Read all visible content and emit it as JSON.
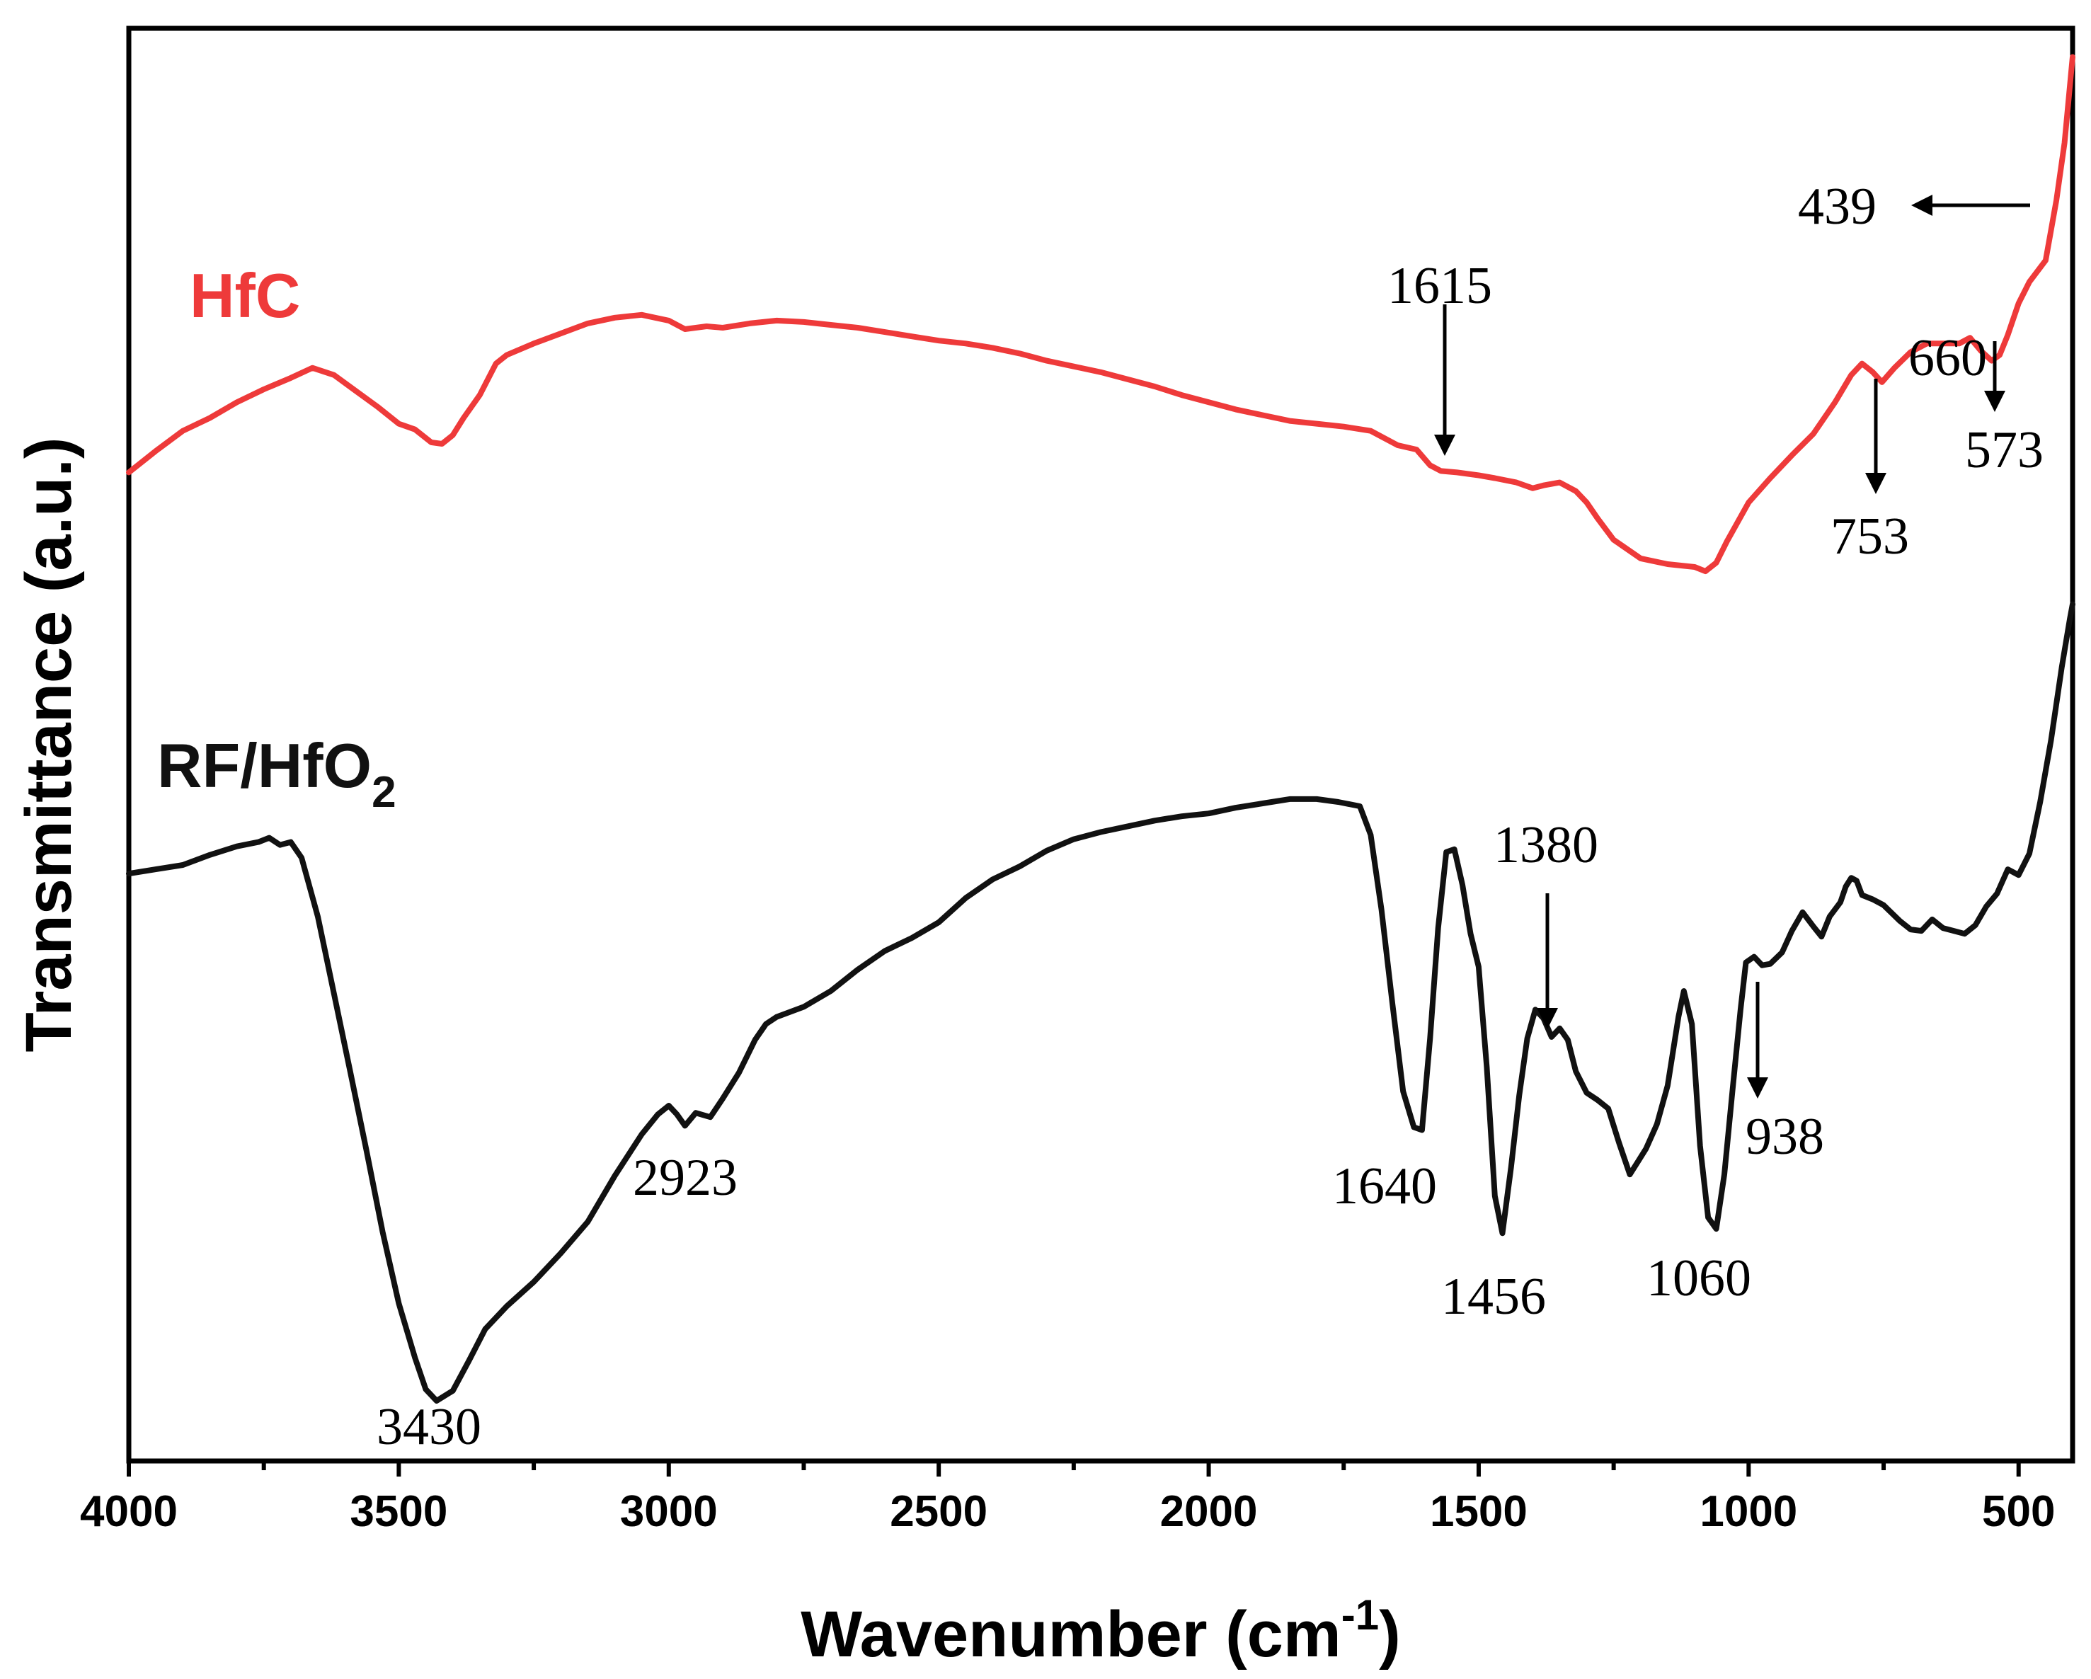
{
  "chart_data": {
    "type": "line",
    "xlabel": "Wavenumber (cm",
    "xlabel_sup": "-1",
    "xlabel_close": ")",
    "ylabel": "Transmittance (a.u.)",
    "xlim": [
      4000,
      400
    ],
    "x_reversed": true,
    "ylim": [
      0,
      100
    ],
    "x_ticks": [
      4000,
      3500,
      3000,
      2500,
      2000,
      1500,
      1000,
      500
    ],
    "x_tick_labels": [
      "4000",
      "3500",
      "3000",
      "2500",
      "2000",
      "1500",
      "1000",
      "500"
    ],
    "grid": false,
    "series": [
      {
        "name": "HfC",
        "color": "#ee3a3a",
        "points": [
          [
            4000,
            69.0
          ],
          [
            3950,
            70.5
          ],
          [
            3900,
            71.9
          ],
          [
            3850,
            72.8
          ],
          [
            3800,
            73.9
          ],
          [
            3750,
            74.8
          ],
          [
            3700,
            75.6
          ],
          [
            3660,
            76.3
          ],
          [
            3620,
            75.8
          ],
          [
            3580,
            74.7
          ],
          [
            3540,
            73.6
          ],
          [
            3500,
            72.4
          ],
          [
            3470,
            72.0
          ],
          [
            3440,
            71.1
          ],
          [
            3420,
            71.0
          ],
          [
            3400,
            71.6
          ],
          [
            3380,
            72.8
          ],
          [
            3350,
            74.4
          ],
          [
            3320,
            76.6
          ],
          [
            3300,
            77.2
          ],
          [
            3250,
            78.0
          ],
          [
            3200,
            78.7
          ],
          [
            3150,
            79.4
          ],
          [
            3100,
            79.8
          ],
          [
            3050,
            80.0
          ],
          [
            3000,
            79.6
          ],
          [
            2970,
            79.0
          ],
          [
            2930,
            79.2
          ],
          [
            2900,
            79.1
          ],
          [
            2850,
            79.4
          ],
          [
            2800,
            79.6
          ],
          [
            2750,
            79.5
          ],
          [
            2700,
            79.3
          ],
          [
            2650,
            79.1
          ],
          [
            2600,
            78.8
          ],
          [
            2550,
            78.5
          ],
          [
            2500,
            78.2
          ],
          [
            2450,
            78.0
          ],
          [
            2400,
            77.7
          ],
          [
            2350,
            77.3
          ],
          [
            2300,
            76.8
          ],
          [
            2250,
            76.4
          ],
          [
            2200,
            76.0
          ],
          [
            2150,
            75.5
          ],
          [
            2100,
            75.0
          ],
          [
            2050,
            74.4
          ],
          [
            2000,
            73.9
          ],
          [
            1950,
            73.4
          ],
          [
            1900,
            73.0
          ],
          [
            1850,
            72.6
          ],
          [
            1800,
            72.4
          ],
          [
            1750,
            72.2
          ],
          [
            1700,
            71.9
          ],
          [
            1650,
            70.9
          ],
          [
            1615,
            70.6
          ],
          [
            1590,
            69.5
          ],
          [
            1570,
            69.1
          ],
          [
            1540,
            69.0
          ],
          [
            1500,
            68.8
          ],
          [
            1470,
            68.6
          ],
          [
            1430,
            68.3
          ],
          [
            1400,
            67.9
          ],
          [
            1380,
            68.1
          ],
          [
            1350,
            68.3
          ],
          [
            1320,
            67.7
          ],
          [
            1300,
            66.9
          ],
          [
            1280,
            65.8
          ],
          [
            1250,
            64.3
          ],
          [
            1200,
            63.0
          ],
          [
            1150,
            62.6
          ],
          [
            1100,
            62.4
          ],
          [
            1080,
            62.1
          ],
          [
            1060,
            62.7
          ],
          [
            1040,
            64.2
          ],
          [
            1000,
            66.9
          ],
          [
            960,
            68.6
          ],
          [
            920,
            70.2
          ],
          [
            880,
            71.7
          ],
          [
            840,
            73.9
          ],
          [
            810,
            75.8
          ],
          [
            790,
            76.6
          ],
          [
            770,
            76.0
          ],
          [
            753,
            75.3
          ],
          [
            730,
            76.3
          ],
          [
            700,
            77.4
          ],
          [
            670,
            78.0
          ],
          [
            640,
            78.0
          ],
          [
            610,
            78.0
          ],
          [
            590,
            78.4
          ],
          [
            570,
            77.5
          ],
          [
            550,
            76.8
          ],
          [
            535,
            77.2
          ],
          [
            520,
            78.6
          ],
          [
            500,
            80.8
          ],
          [
            480,
            82.3
          ],
          [
            450,
            83.8
          ],
          [
            430,
            88.0
          ],
          [
            415,
            92.0
          ],
          [
            405,
            96.0
          ],
          [
            400,
            98.0
          ]
        ]
      },
      {
        "name": "RF/HfO",
        "name_sub": "2",
        "color": "#111111",
        "points": [
          [
            4000,
            41.0
          ],
          [
            3950,
            41.3
          ],
          [
            3900,
            41.6
          ],
          [
            3850,
            42.3
          ],
          [
            3800,
            42.9
          ],
          [
            3760,
            43.2
          ],
          [
            3740,
            43.5
          ],
          [
            3720,
            43.0
          ],
          [
            3700,
            43.2
          ],
          [
            3680,
            42.1
          ],
          [
            3650,
            38.0
          ],
          [
            3620,
            32.6
          ],
          [
            3590,
            27.2
          ],
          [
            3560,
            21.7
          ],
          [
            3530,
            16.0
          ],
          [
            3500,
            11.0
          ],
          [
            3470,
            7.2
          ],
          [
            3450,
            5.0
          ],
          [
            3430,
            4.2
          ],
          [
            3400,
            4.9
          ],
          [
            3370,
            7.0
          ],
          [
            3340,
            9.2
          ],
          [
            3300,
            10.8
          ],
          [
            3250,
            12.5
          ],
          [
            3200,
            14.5
          ],
          [
            3150,
            16.7
          ],
          [
            3100,
            19.9
          ],
          [
            3050,
            22.8
          ],
          [
            3020,
            24.2
          ],
          [
            3000,
            24.8
          ],
          [
            2985,
            24.2
          ],
          [
            2970,
            23.4
          ],
          [
            2950,
            24.3
          ],
          [
            2923,
            24.0
          ],
          [
            2900,
            25.3
          ],
          [
            2870,
            27.1
          ],
          [
            2840,
            29.4
          ],
          [
            2820,
            30.5
          ],
          [
            2800,
            31.0
          ],
          [
            2750,
            31.7
          ],
          [
            2700,
            32.8
          ],
          [
            2650,
            34.3
          ],
          [
            2600,
            35.6
          ],
          [
            2550,
            36.5
          ],
          [
            2500,
            37.6
          ],
          [
            2450,
            39.3
          ],
          [
            2400,
            40.6
          ],
          [
            2350,
            41.5
          ],
          [
            2300,
            42.6
          ],
          [
            2250,
            43.4
          ],
          [
            2200,
            43.9
          ],
          [
            2150,
            44.3
          ],
          [
            2100,
            44.7
          ],
          [
            2050,
            45.0
          ],
          [
            2000,
            45.2
          ],
          [
            1950,
            45.6
          ],
          [
            1900,
            45.9
          ],
          [
            1850,
            46.2
          ],
          [
            1800,
            46.2
          ],
          [
            1760,
            46.0
          ],
          [
            1720,
            45.7
          ],
          [
            1700,
            43.7
          ],
          [
            1680,
            38.5
          ],
          [
            1660,
            32.0
          ],
          [
            1640,
            25.8
          ],
          [
            1620,
            23.3
          ],
          [
            1605,
            23.1
          ],
          [
            1590,
            29.5
          ],
          [
            1575,
            37.2
          ],
          [
            1560,
            42.5
          ],
          [
            1545,
            42.7
          ],
          [
            1530,
            40.2
          ],
          [
            1515,
            36.8
          ],
          [
            1500,
            34.5
          ],
          [
            1485,
            27.5
          ],
          [
            1470,
            18.5
          ],
          [
            1456,
            15.9
          ],
          [
            1440,
            20.5
          ],
          [
            1425,
            25.5
          ],
          [
            1410,
            29.5
          ],
          [
            1395,
            31.5
          ],
          [
            1380,
            30.9
          ],
          [
            1365,
            29.6
          ],
          [
            1350,
            30.2
          ],
          [
            1335,
            29.4
          ],
          [
            1320,
            27.2
          ],
          [
            1300,
            25.7
          ],
          [
            1280,
            25.2
          ],
          [
            1260,
            24.6
          ],
          [
            1240,
            22.2
          ],
          [
            1220,
            20.0
          ],
          [
            1205,
            20.9
          ],
          [
            1190,
            21.8
          ],
          [
            1170,
            23.5
          ],
          [
            1150,
            26.2
          ],
          [
            1130,
            31.0
          ],
          [
            1120,
            32.8
          ],
          [
            1105,
            30.5
          ],
          [
            1090,
            22.0
          ],
          [
            1075,
            17.0
          ],
          [
            1060,
            16.2
          ],
          [
            1045,
            20.0
          ],
          [
            1030,
            25.8
          ],
          [
            1015,
            31.5
          ],
          [
            1005,
            34.8
          ],
          [
            990,
            35.2
          ],
          [
            975,
            34.6
          ],
          [
            960,
            34.7
          ],
          [
            938,
            35.5
          ],
          [
            920,
            37.0
          ],
          [
            900,
            38.3
          ],
          [
            880,
            37.3
          ],
          [
            865,
            36.6
          ],
          [
            850,
            38.0
          ],
          [
            830,
            39.0
          ],
          [
            820,
            40.1
          ],
          [
            810,
            40.7
          ],
          [
            800,
            40.5
          ],
          [
            790,
            39.5
          ],
          [
            770,
            39.2
          ],
          [
            750,
            38.8
          ],
          [
            720,
            37.7
          ],
          [
            700,
            37.1
          ],
          [
            680,
            37.0
          ],
          [
            660,
            37.8
          ],
          [
            640,
            37.2
          ],
          [
            620,
            37.0
          ],
          [
            600,
            36.8
          ],
          [
            580,
            37.4
          ],
          [
            560,
            38.7
          ],
          [
            540,
            39.6
          ],
          [
            520,
            41.3
          ],
          [
            500,
            40.9
          ],
          [
            480,
            42.4
          ],
          [
            460,
            46.0
          ],
          [
            440,
            50.3
          ],
          [
            420,
            55.4
          ],
          [
            405,
            58.8
          ],
          [
            400,
            59.8
          ]
        ]
      }
    ],
    "annotations": [
      {
        "text": "439",
        "series": 0
      },
      {
        "text": "1615",
        "series": 0
      },
      {
        "text": "753",
        "series": 0
      },
      {
        "text": "660",
        "series": 0
      },
      {
        "text": "573",
        "series": 0
      },
      {
        "text": "3430",
        "series": 1
      },
      {
        "text": "2923",
        "series": 1
      },
      {
        "text": "1640",
        "series": 1
      },
      {
        "text": "1380",
        "series": 1
      },
      {
        "text": "1456",
        "series": 1
      },
      {
        "text": "1060",
        "series": 1
      },
      {
        "text": "938",
        "series": 1
      }
    ]
  }
}
